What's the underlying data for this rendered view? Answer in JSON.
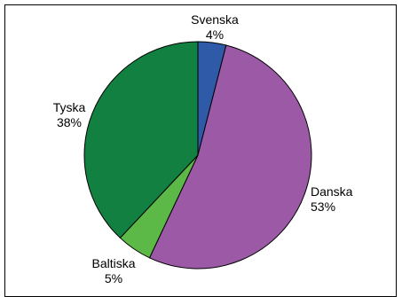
{
  "chart_data": {
    "type": "pie",
    "title": "",
    "slices": [
      {
        "label": "Svenska",
        "value": 4,
        "value_label": "4%",
        "color": "#2e5aa8"
      },
      {
        "label": "Danska",
        "value": 53,
        "value_label": "53%",
        "color": "#9b59a6"
      },
      {
        "label": "Baltiska",
        "value": 5,
        "value_label": "5%",
        "color": "#5cb847"
      },
      {
        "label": "Tyska",
        "value": 38,
        "value_label": "38%",
        "color": "#118040"
      }
    ],
    "legend": "none",
    "start": "12 o'clock",
    "direction": "clockwise"
  }
}
